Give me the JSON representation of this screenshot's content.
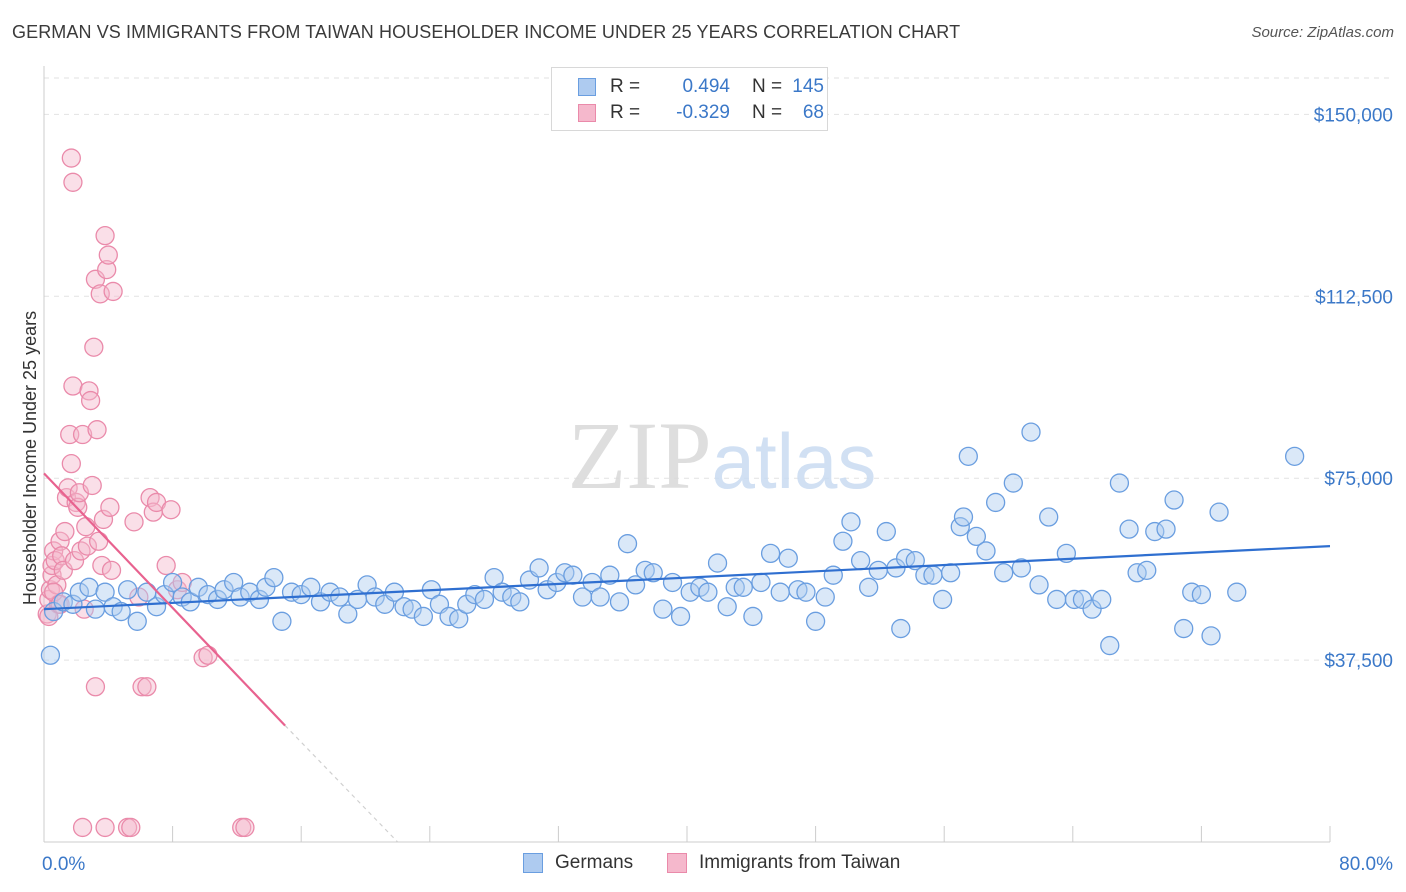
{
  "header": {
    "title": "GERMAN VS IMMIGRANTS FROM TAIWAN HOUSEHOLDER INCOME UNDER 25 YEARS CORRELATION CHART",
    "source": "Source: ZipAtlas.com"
  },
  "legend": {
    "rows": [
      {
        "r_label": "R =",
        "r_value": "0.494",
        "n_label": "N =",
        "n_value": "145"
      },
      {
        "r_label": "R =",
        "r_value": "-0.329",
        "n_label": "N =",
        "n_value": "68"
      }
    ]
  },
  "bottom_legend": {
    "items": [
      "Germans",
      "Immigrants from Taiwan"
    ]
  },
  "colors": {
    "german_fill": "#aecbf0",
    "german_stroke": "#6a9ee0",
    "german_line": "#2f6fd0",
    "taiwan_fill": "#f5b8cc",
    "taiwan_stroke": "#ea8aaa",
    "taiwan_line": "#e8628f",
    "axis_label": "#3b78c8",
    "grid": "#e2e2e2"
  },
  "chart_data": {
    "type": "scatter",
    "title": "GERMAN VS IMMIGRANTS FROM TAIWAN HOUSEHOLDER INCOME UNDER 25 YEARS CORRELATION CHART",
    "xlabel": "",
    "ylabel": "Householder Income Under 25 years",
    "xlim": [
      0,
      80
    ],
    "ylim": [
      0,
      157500
    ],
    "x_tick_labels": [
      "0.0%",
      "80.0%"
    ],
    "y_ticks": [
      37500,
      75000,
      112500,
      150000
    ],
    "y_tick_labels": [
      "$37,500",
      "$75,000",
      "$112,500",
      "$150,000"
    ],
    "grid": true,
    "watermark": "ZIPatlas",
    "series": [
      {
        "name": "Germans",
        "r": 0.494,
        "n": 145,
        "trend": {
          "x0": 0,
          "y0": 48000,
          "x1": 80,
          "y1": 61000
        },
        "points": [
          [
            0.4,
            38500
          ],
          [
            0.6,
            47500
          ],
          [
            1.2,
            49500
          ],
          [
            1.8,
            49000
          ],
          [
            2.2,
            51500
          ],
          [
            2.8,
            52500
          ],
          [
            3.2,
            48000
          ],
          [
            3.8,
            51500
          ],
          [
            4.3,
            48500
          ],
          [
            4.8,
            47500
          ],
          [
            5.2,
            52000
          ],
          [
            5.8,
            45500
          ],
          [
            6.4,
            51500
          ],
          [
            7.0,
            48500
          ],
          [
            7.5,
            51000
          ],
          [
            8.0,
            53500
          ],
          [
            8.6,
            50500
          ],
          [
            9.1,
            49500
          ],
          [
            9.6,
            52500
          ],
          [
            10.2,
            51000
          ],
          [
            10.8,
            50000
          ],
          [
            11.2,
            52000
          ],
          [
            11.8,
            53500
          ],
          [
            12.2,
            50500
          ],
          [
            12.8,
            51500
          ],
          [
            13.4,
            50000
          ],
          [
            13.8,
            52500
          ],
          [
            14.3,
            54500
          ],
          [
            14.8,
            45500
          ],
          [
            15.4,
            51500
          ],
          [
            16.0,
            51000
          ],
          [
            16.6,
            52500
          ],
          [
            17.2,
            49500
          ],
          [
            17.8,
            51500
          ],
          [
            18.4,
            50500
          ],
          [
            18.9,
            47000
          ],
          [
            19.5,
            50000
          ],
          [
            20.1,
            53000
          ],
          [
            20.6,
            50500
          ],
          [
            21.2,
            49000
          ],
          [
            21.8,
            51500
          ],
          [
            22.4,
            48500
          ],
          [
            22.9,
            48000
          ],
          [
            23.6,
            46500
          ],
          [
            24.1,
            52000
          ],
          [
            24.6,
            49000
          ],
          [
            25.2,
            46500
          ],
          [
            25.8,
            46000
          ],
          [
            26.3,
            49000
          ],
          [
            26.8,
            51000
          ],
          [
            27.4,
            50000
          ],
          [
            28.0,
            54500
          ],
          [
            28.5,
            51500
          ],
          [
            29.1,
            50500
          ],
          [
            29.6,
            49500
          ],
          [
            30.2,
            54000
          ],
          [
            30.8,
            56500
          ],
          [
            31.3,
            52000
          ],
          [
            31.9,
            53500
          ],
          [
            32.4,
            55500
          ],
          [
            32.9,
            55000
          ],
          [
            33.5,
            50500
          ],
          [
            34.1,
            53500
          ],
          [
            34.6,
            50500
          ],
          [
            35.2,
            55000
          ],
          [
            35.8,
            49500
          ],
          [
            36.3,
            61500
          ],
          [
            36.8,
            53000
          ],
          [
            37.4,
            56000
          ],
          [
            37.9,
            55500
          ],
          [
            38.5,
            48000
          ],
          [
            39.1,
            53500
          ],
          [
            39.6,
            46500
          ],
          [
            40.2,
            51500
          ],
          [
            40.8,
            52500
          ],
          [
            41.3,
            51500
          ],
          [
            41.9,
            57500
          ],
          [
            42.5,
            48500
          ],
          [
            43.0,
            52500
          ],
          [
            43.5,
            52500
          ],
          [
            44.1,
            46500
          ],
          [
            44.6,
            53500
          ],
          [
            45.2,
            59500
          ],
          [
            45.8,
            51500
          ],
          [
            46.3,
            58500
          ],
          [
            46.9,
            52000
          ],
          [
            47.4,
            51500
          ],
          [
            48.0,
            45500
          ],
          [
            48.6,
            50500
          ],
          [
            49.1,
            55000
          ],
          [
            49.7,
            62000
          ],
          [
            50.2,
            66000
          ],
          [
            50.8,
            58000
          ],
          [
            51.3,
            52500
          ],
          [
            51.9,
            56000
          ],
          [
            52.4,
            64000
          ],
          [
            53.0,
            56500
          ],
          [
            53.3,
            44000
          ],
          [
            53.6,
            58500
          ],
          [
            54.2,
            58000
          ],
          [
            54.8,
            55000
          ],
          [
            55.3,
            55000
          ],
          [
            55.9,
            50000
          ],
          [
            56.4,
            55500
          ],
          [
            57.0,
            65000
          ],
          [
            57.2,
            67000
          ],
          [
            57.5,
            79500
          ],
          [
            58.0,
            63000
          ],
          [
            58.6,
            60000
          ],
          [
            59.2,
            70000
          ],
          [
            59.7,
            55500
          ],
          [
            60.3,
            74000
          ],
          [
            60.8,
            56500
          ],
          [
            61.4,
            84500
          ],
          [
            61.9,
            53000
          ],
          [
            62.5,
            67000
          ],
          [
            63.0,
            50000
          ],
          [
            63.6,
            59500
          ],
          [
            64.1,
            50000
          ],
          [
            64.6,
            50000
          ],
          [
            65.2,
            48000
          ],
          [
            65.8,
            50000
          ],
          [
            66.3,
            40500
          ],
          [
            66.9,
            74000
          ],
          [
            67.5,
            64500
          ],
          [
            68.0,
            55500
          ],
          [
            68.6,
            56000
          ],
          [
            69.1,
            64000
          ],
          [
            69.8,
            64500
          ],
          [
            70.3,
            70500
          ],
          [
            70.9,
            44000
          ],
          [
            71.4,
            51500
          ],
          [
            72.0,
            51000
          ],
          [
            72.6,
            42500
          ],
          [
            73.1,
            68000
          ],
          [
            74.2,
            51500
          ],
          [
            77.8,
            79500
          ]
        ]
      },
      {
        "name": "Immigrants from Taiwan",
        "r": -0.329,
        "n": 68,
        "trend": {
          "x0": 0,
          "y0": 76000,
          "x1": 15,
          "y1": 24000,
          "dash_x1": 22,
          "dash_y1": 0
        },
        "points": [
          [
            0.2,
            47000
          ],
          [
            0.3,
            50000
          ],
          [
            0.4,
            52000
          ],
          [
            0.5,
            55000
          ],
          [
            0.5,
            57000
          ],
          [
            0.6,
            60000
          ],
          [
            0.7,
            58000
          ],
          [
            0.8,
            53000
          ],
          [
            0.9,
            49000
          ],
          [
            1.0,
            62000
          ],
          [
            1.1,
            59000
          ],
          [
            1.2,
            56000
          ],
          [
            1.3,
            64000
          ],
          [
            1.4,
            71000
          ],
          [
            1.5,
            73000
          ],
          [
            1.6,
            84000
          ],
          [
            1.7,
            78000
          ],
          [
            1.8,
            94000
          ],
          [
            1.9,
            58000
          ],
          [
            2.0,
            70000
          ],
          [
            2.1,
            69000
          ],
          [
            2.2,
            72000
          ],
          [
            2.3,
            60000
          ],
          [
            2.4,
            84000
          ],
          [
            2.5,
            48000
          ],
          [
            2.6,
            65000
          ],
          [
            2.7,
            61000
          ],
          [
            2.8,
            93000
          ],
          [
            2.9,
            91000
          ],
          [
            3.0,
            73500
          ],
          [
            3.1,
            102000
          ],
          [
            3.2,
            116000
          ],
          [
            3.3,
            85000
          ],
          [
            3.4,
            62000
          ],
          [
            3.5,
            113000
          ],
          [
            3.6,
            57000
          ],
          [
            3.7,
            66500
          ],
          [
            3.8,
            125000
          ],
          [
            3.9,
            118000
          ],
          [
            4.0,
            121000
          ],
          [
            4.1,
            69000
          ],
          [
            4.2,
            56000
          ],
          [
            4.3,
            113500
          ],
          [
            1.7,
            141000
          ],
          [
            1.8,
            136000
          ],
          [
            2.4,
            3000
          ],
          [
            3.2,
            32000
          ],
          [
            3.8,
            3000
          ],
          [
            5.2,
            3000
          ],
          [
            5.4,
            3000
          ],
          [
            5.6,
            66000
          ],
          [
            5.9,
            50500
          ],
          [
            6.1,
            32000
          ],
          [
            6.4,
            32000
          ],
          [
            6.6,
            71000
          ],
          [
            6.8,
            68000
          ],
          [
            7.0,
            70000
          ],
          [
            7.6,
            57000
          ],
          [
            7.9,
            68500
          ],
          [
            8.3,
            52000
          ],
          [
            8.6,
            53500
          ],
          [
            9.9,
            38000
          ],
          [
            10.2,
            38500
          ],
          [
            12.3,
            3000
          ],
          [
            12.5,
            3000
          ],
          [
            0.3,
            46500
          ],
          [
            0.6,
            51500
          ],
          [
            1.0,
            49000
          ]
        ]
      }
    ]
  }
}
